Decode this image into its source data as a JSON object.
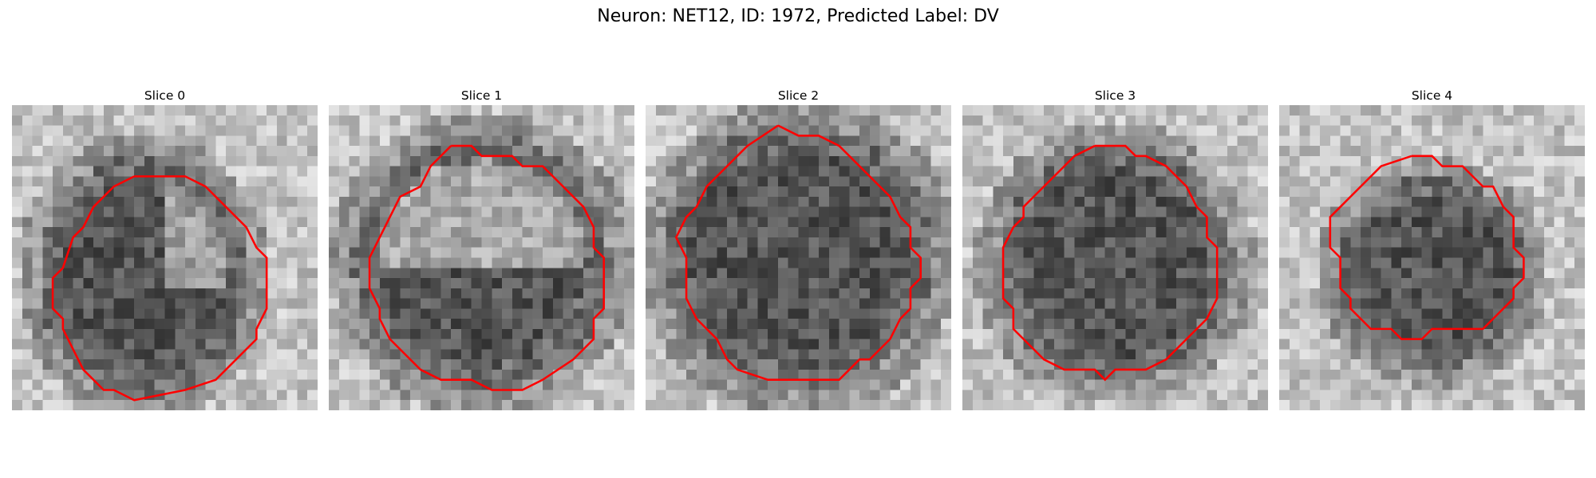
{
  "figure": {
    "title": "Neuron: NET12, ID: 1972, Predicted Label: DV",
    "contour_color": "#ff0000",
    "image_colormap": "gray"
  },
  "slices": [
    {
      "label": "Slice 0",
      "blob": [
        0.43,
        0.56,
        0.33,
        0.38,
        0.1
      ]
    },
    {
      "label": "Slice 1",
      "blob": [
        0.5,
        0.52,
        0.4,
        0.4,
        0.08
      ]
    },
    {
      "label": "Slice 2",
      "blob": [
        0.5,
        0.5,
        0.42,
        0.42,
        0.05
      ]
    },
    {
      "label": "Slice 3",
      "blob": [
        0.5,
        0.52,
        0.37,
        0.37,
        0.05
      ]
    },
    {
      "label": "Slice 4",
      "blob": [
        0.5,
        0.55,
        0.3,
        0.3,
        0.05
      ]
    }
  ]
}
